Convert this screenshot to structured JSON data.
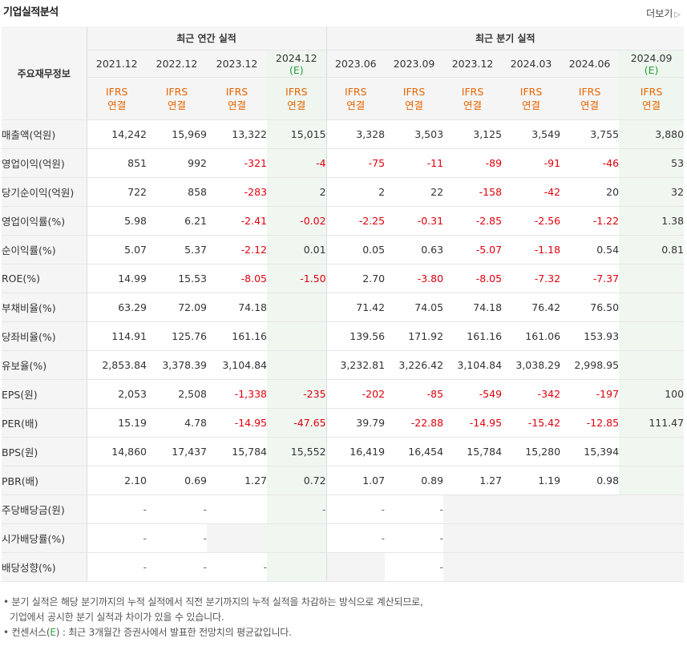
{
  "header": {
    "title": "기업실적분석",
    "more_label": "더보기",
    "more_icon": "chevron-right-icon"
  },
  "table": {
    "corner_label": "주요재무정보",
    "group_annual": "최근 연간 실적",
    "group_quarter": "최근 분기 실적",
    "periods": [
      {
        "label": "2021.12",
        "est": ""
      },
      {
        "label": "2022.12",
        "est": ""
      },
      {
        "label": "2023.12",
        "est": ""
      },
      {
        "label": "2024.12",
        "est": "(E)"
      },
      {
        "label": "2023.06",
        "est": ""
      },
      {
        "label": "2023.09",
        "est": ""
      },
      {
        "label": "2023.12",
        "est": ""
      },
      {
        "label": "2024.03",
        "est": ""
      },
      {
        "label": "2024.06",
        "est": ""
      },
      {
        "label": "2024.09",
        "est": "(E)"
      }
    ],
    "basis_line1": "IFRS",
    "basis_line2": "연결",
    "rows": [
      {
        "label": "매출액(억원)",
        "values": [
          "14,242",
          "15,969",
          "13,322",
          "15,015",
          "3,328",
          "3,503",
          "3,125",
          "3,549",
          "3,755",
          "3,880"
        ]
      },
      {
        "label": "영업이익(억원)",
        "values": [
          "851",
          "992",
          "-321",
          "-4",
          "-75",
          "-11",
          "-89",
          "-91",
          "-46",
          "53"
        ]
      },
      {
        "label": "당기순이익(억원)",
        "values": [
          "722",
          "858",
          "-283",
          "2",
          "2",
          "22",
          "-158",
          "-42",
          "20",
          "32"
        ]
      },
      {
        "label": "영업이익률(%)",
        "values": [
          "5.98",
          "6.21",
          "-2.41",
          "-0.02",
          "-2.25",
          "-0.31",
          "-2.85",
          "-2.56",
          "-1.22",
          "1.38"
        ]
      },
      {
        "label": "순이익률(%)",
        "values": [
          "5.07",
          "5.37",
          "-2.12",
          "0.01",
          "0.05",
          "0.63",
          "-5.07",
          "-1.18",
          "0.54",
          "0.81"
        ]
      },
      {
        "label": "ROE(%)",
        "values": [
          "14.99",
          "15.53",
          "-8.05",
          "-1.50",
          "2.70",
          "-3.80",
          "-8.05",
          "-7.32",
          "-7.37",
          ""
        ]
      },
      {
        "label": "부채비율(%)",
        "values": [
          "63.29",
          "72.09",
          "74.18",
          "",
          "71.42",
          "74.05",
          "74.18",
          "76.42",
          "76.50",
          ""
        ]
      },
      {
        "label": "당좌비율(%)",
        "values": [
          "114.91",
          "125.76",
          "161.16",
          "",
          "139.56",
          "171.92",
          "161.16",
          "161.06",
          "153.93",
          ""
        ]
      },
      {
        "label": "유보율(%)",
        "values": [
          "2,853.84",
          "3,378.39",
          "3,104.84",
          "",
          "3,232.81",
          "3,226.42",
          "3,104.84",
          "3,038.29",
          "2,998.95",
          ""
        ]
      },
      {
        "label": "EPS(원)",
        "values": [
          "2,053",
          "2,508",
          "-1,338",
          "-235",
          "-202",
          "-85",
          "-549",
          "-342",
          "-197",
          "100"
        ]
      },
      {
        "label": "PER(배)",
        "values": [
          "15.19",
          "4.78",
          "-14.95",
          "-47.65",
          "39.79",
          "-22.88",
          "-14.95",
          "-15.42",
          "-12.85",
          "111.47"
        ]
      },
      {
        "label": "BPS(원)",
        "values": [
          "14,860",
          "17,437",
          "15,784",
          "15,552",
          "16,419",
          "16,454",
          "15,784",
          "15,280",
          "15,394",
          ""
        ]
      },
      {
        "label": "PBR(배)",
        "values": [
          "2.10",
          "0.69",
          "1.27",
          "0.72",
          "1.07",
          "0.89",
          "1.27",
          "1.19",
          "0.98",
          ""
        ]
      },
      {
        "label": "주당배당금(원)",
        "values": [
          "-",
          "-",
          "",
          "-",
          "-",
          "-",
          "",
          "",
          "",
          ""
        ]
      },
      {
        "label": "시가배당률(%)",
        "values": [
          "-",
          "-",
          "",
          "",
          "-",
          "-",
          "",
          "",
          "",
          ""
        ]
      },
      {
        "label": "배당성향(%)",
        "values": [
          "-",
          "-",
          "-",
          "",
          "",
          "-",
          "",
          "",
          "",
          ""
        ]
      }
    ]
  },
  "notes": {
    "line1": "분기 실적은 해당 분기까지의 누적 실적에서 직전 분기까지의 누적 실적을 차감하는 방식으로 계산되므로,",
    "line2": "기업에서 공시한 분기 실적과 차이가 있을 수 있습니다.",
    "line3_prefix": "컨센서스(",
    "line3_e": "E",
    "line3_suffix": ") : 최근 3개월간 증권사에서 발표한 전망치의 평균값입니다.",
    "bullet": "•"
  },
  "colors": {
    "negative": "#e0000b",
    "estimate_bg": "#f0f7f1",
    "ifrs": "#e86400",
    "estimate_mark": "#2a9d3a"
  }
}
